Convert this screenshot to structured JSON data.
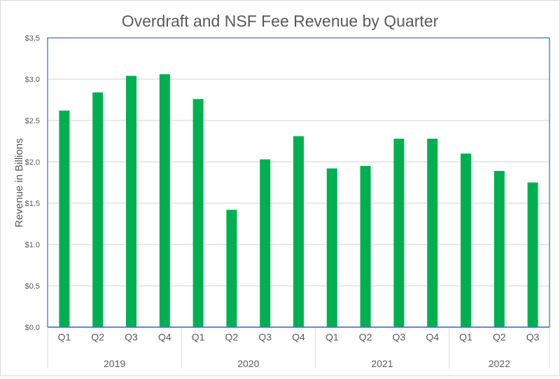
{
  "chart_data": {
    "type": "bar",
    "title": "Overdraft and NSF Fee Revenue by Quarter",
    "xlabel": "",
    "ylabel": "Revenue in Billions",
    "ylim": [
      0,
      3.5
    ],
    "yticks": [
      "$0.0",
      "$0.5",
      "$1.0",
      "$1.5",
      "$2.0",
      "$2.5",
      "$3.0",
      "$3.5"
    ],
    "grid": true,
    "legend": "none",
    "bar_color": "#00b050",
    "axis_color": "#4472c4",
    "groups": [
      {
        "label": "2019",
        "categories": [
          "Q1",
          "Q2",
          "Q3",
          "Q4"
        ]
      },
      {
        "label": "2020",
        "categories": [
          "Q1",
          "Q2",
          "Q3",
          "Q4"
        ]
      },
      {
        "label": "2021",
        "categories": [
          "Q1",
          "Q2",
          "Q3",
          "Q4"
        ]
      },
      {
        "label": "2022",
        "categories": [
          "Q1",
          "Q2",
          "Q3"
        ]
      }
    ],
    "values": [
      2.62,
      2.84,
      3.04,
      3.06,
      2.76,
      1.42,
      2.03,
      2.31,
      1.92,
      1.95,
      2.28,
      2.28,
      2.1,
      1.89,
      1.75
    ]
  }
}
